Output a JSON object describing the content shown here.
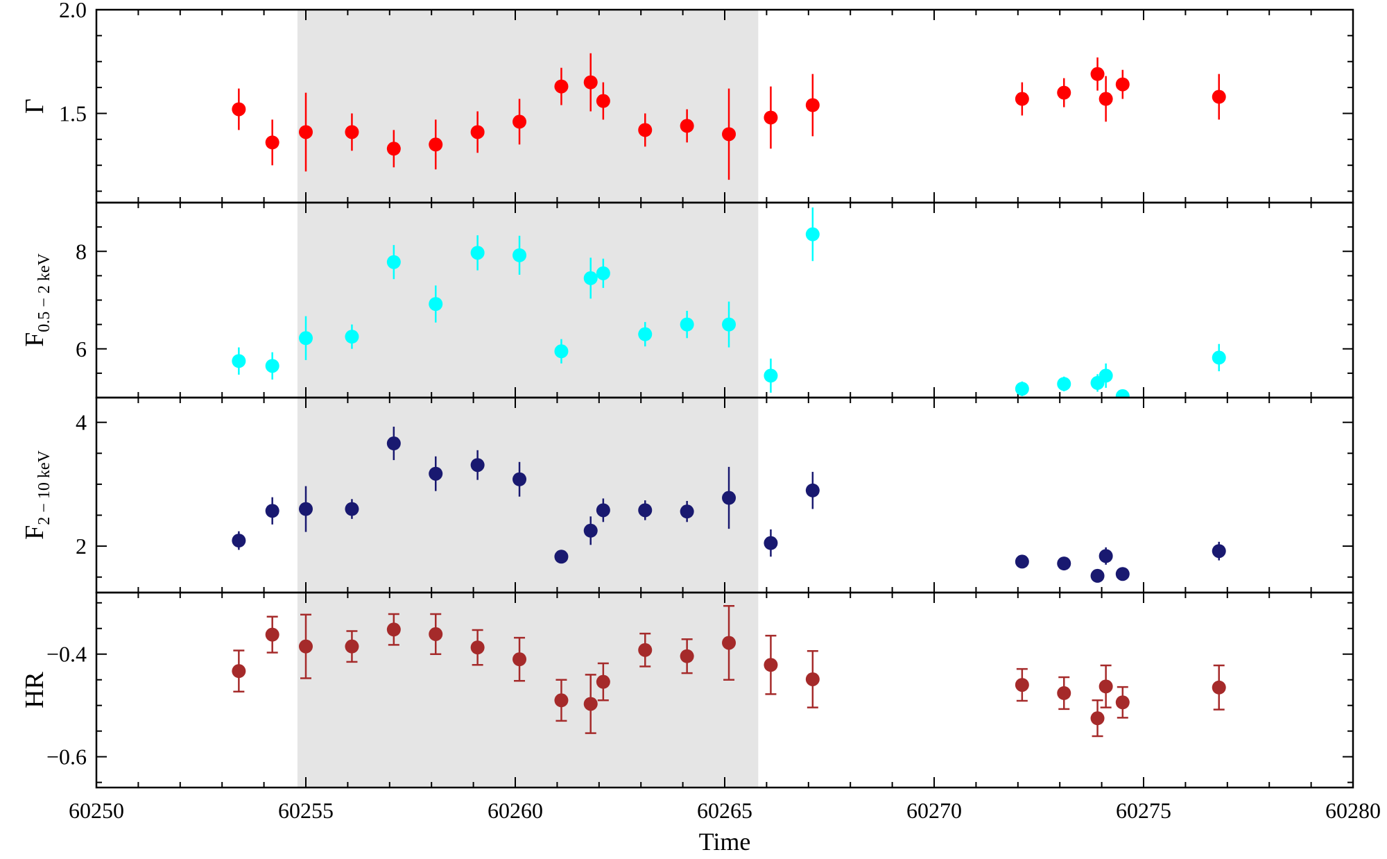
{
  "chart_data": {
    "type": "scatter",
    "xlabel": "Time",
    "xlim": [
      60250,
      60280
    ],
    "x_ticks": [
      "60250",
      "60255",
      "60260",
      "60265",
      "60270",
      "60275",
      "60280"
    ],
    "shaded_interval": [
      60254.8,
      60265.8
    ],
    "panels": [
      {
        "id": "gamma",
        "ylabel": "Γ",
        "ylabel_sub": "",
        "ylim": [
          1.07,
          2.0
        ],
        "y_ticks": [
          1.5,
          2.0
        ],
        "y_tick_labels": [
          "1.5",
          "2.0"
        ],
        "color": "#ff0000",
        "marker_style": "errorbar",
        "points": [
          {
            "x": 60253.4,
            "y": 1.52,
            "err": 0.1
          },
          {
            "x": 60254.2,
            "y": 1.36,
            "err": 0.11
          },
          {
            "x": 60255.0,
            "y": 1.41,
            "err": 0.19
          },
          {
            "x": 60256.1,
            "y": 1.41,
            "err": 0.09
          },
          {
            "x": 60257.1,
            "y": 1.33,
            "err": 0.09
          },
          {
            "x": 60258.1,
            "y": 1.35,
            "err": 0.12
          },
          {
            "x": 60259.1,
            "y": 1.41,
            "err": 0.1
          },
          {
            "x": 60260.1,
            "y": 1.46,
            "err": 0.11
          },
          {
            "x": 60261.1,
            "y": 1.63,
            "err": 0.09
          },
          {
            "x": 60261.8,
            "y": 1.65,
            "err": 0.14
          },
          {
            "x": 60262.1,
            "y": 1.56,
            "err": 0.09
          },
          {
            "x": 60263.1,
            "y": 1.42,
            "err": 0.08
          },
          {
            "x": 60264.1,
            "y": 1.44,
            "err": 0.08
          },
          {
            "x": 60265.1,
            "y": 1.4,
            "err": 0.22
          },
          {
            "x": 60266.1,
            "y": 1.48,
            "err": 0.15
          },
          {
            "x": 60267.1,
            "y": 1.54,
            "err": 0.15
          },
          {
            "x": 60272.1,
            "y": 1.57,
            "err": 0.08
          },
          {
            "x": 60273.1,
            "y": 1.6,
            "err": 0.07
          },
          {
            "x": 60273.9,
            "y": 1.69,
            "err": 0.08
          },
          {
            "x": 60274.1,
            "y": 1.57,
            "err": 0.11
          },
          {
            "x": 60274.5,
            "y": 1.64,
            "err": 0.07
          },
          {
            "x": 60276.8,
            "y": 1.58,
            "err": 0.11
          }
        ]
      },
      {
        "id": "flux_soft",
        "ylabel": "F",
        "ylabel_sub": "0.5 − 2 keV",
        "ylim": [
          5.0,
          9.0
        ],
        "y_ticks": [
          6,
          8
        ],
        "y_tick_labels": [
          "6",
          "8"
        ],
        "color": "#00ffff",
        "marker_style": "errorbar",
        "points": [
          {
            "x": 60253.4,
            "y": 5.75,
            "err": 0.28
          },
          {
            "x": 60254.2,
            "y": 5.65,
            "err": 0.28
          },
          {
            "x": 60255.0,
            "y": 6.22,
            "err": 0.45
          },
          {
            "x": 60256.1,
            "y": 6.25,
            "err": 0.25
          },
          {
            "x": 60257.1,
            "y": 7.78,
            "err": 0.35
          },
          {
            "x": 60258.1,
            "y": 6.92,
            "err": 0.38
          },
          {
            "x": 60259.1,
            "y": 7.97,
            "err": 0.36
          },
          {
            "x": 60260.1,
            "y": 7.92,
            "err": 0.4
          },
          {
            "x": 60261.1,
            "y": 5.95,
            "err": 0.25
          },
          {
            "x": 60261.8,
            "y": 7.45,
            "err": 0.42
          },
          {
            "x": 60262.1,
            "y": 7.55,
            "err": 0.3
          },
          {
            "x": 60263.1,
            "y": 6.3,
            "err": 0.25
          },
          {
            "x": 60264.1,
            "y": 6.5,
            "err": 0.28
          },
          {
            "x": 60265.1,
            "y": 6.5,
            "err": 0.47
          },
          {
            "x": 60266.1,
            "y": 5.45,
            "err": 0.35
          },
          {
            "x": 60267.1,
            "y": 8.35,
            "err": 0.55
          },
          {
            "x": 60272.1,
            "y": 5.18,
            "err": 0.15
          },
          {
            "x": 60273.1,
            "y": 5.28,
            "err": 0.15
          },
          {
            "x": 60273.9,
            "y": 5.3,
            "err": 0.18
          },
          {
            "x": 60274.1,
            "y": 5.45,
            "err": 0.25
          },
          {
            "x": 60274.5,
            "y": 5.03,
            "err": 0.05
          },
          {
            "x": 60276.8,
            "y": 5.82,
            "err": 0.28
          }
        ]
      },
      {
        "id": "flux_hard",
        "ylabel": "F",
        "ylabel_sub": "2 − 10 keV",
        "ylim": [
          1.25,
          4.4
        ],
        "y_ticks": [
          2,
          4
        ],
        "y_tick_labels": [
          "2",
          "4"
        ],
        "color": "#191970",
        "marker_style": "errorbar",
        "points": [
          {
            "x": 60253.4,
            "y": 2.09,
            "err": 0.15
          },
          {
            "x": 60254.2,
            "y": 2.57,
            "err": 0.22
          },
          {
            "x": 60255.0,
            "y": 2.6,
            "err": 0.37
          },
          {
            "x": 60256.1,
            "y": 2.6,
            "err": 0.16
          },
          {
            "x": 60257.1,
            "y": 3.66,
            "err": 0.27
          },
          {
            "x": 60258.1,
            "y": 3.17,
            "err": 0.28
          },
          {
            "x": 60259.1,
            "y": 3.31,
            "err": 0.24
          },
          {
            "x": 60260.1,
            "y": 3.08,
            "err": 0.28
          },
          {
            "x": 60261.1,
            "y": 1.83,
            "err": 0.1
          },
          {
            "x": 60261.8,
            "y": 2.25,
            "err": 0.23
          },
          {
            "x": 60262.1,
            "y": 2.58,
            "err": 0.19
          },
          {
            "x": 60263.1,
            "y": 2.58,
            "err": 0.16
          },
          {
            "x": 60264.1,
            "y": 2.56,
            "err": 0.17
          },
          {
            "x": 60265.1,
            "y": 2.78,
            "err": 0.5
          },
          {
            "x": 60266.1,
            "y": 2.05,
            "err": 0.22
          },
          {
            "x": 60267.1,
            "y": 2.9,
            "err": 0.3
          },
          {
            "x": 60272.1,
            "y": 1.75,
            "err": 0.06
          },
          {
            "x": 60273.1,
            "y": 1.72,
            "err": 0.06
          },
          {
            "x": 60273.9,
            "y": 1.52,
            "err": 0.06
          },
          {
            "x": 60274.1,
            "y": 1.84,
            "err": 0.14
          },
          {
            "x": 60274.5,
            "y": 1.55,
            "err": 0.06
          },
          {
            "x": 60276.8,
            "y": 1.92,
            "err": 0.15
          }
        ]
      },
      {
        "id": "hr",
        "ylabel": "HR",
        "ylabel_sub": "",
        "ylim": [
          -0.66,
          -0.28
        ],
        "y_ticks": [
          -0.6,
          -0.4
        ],
        "y_tick_labels": [
          "−0.6",
          "−0.4"
        ],
        "color": "#a52a2a",
        "marker_style": "errorbar-capped",
        "points": [
          {
            "x": 60253.4,
            "y": -0.433,
            "err": 0.04
          },
          {
            "x": 60254.2,
            "y": -0.362,
            "err": 0.035
          },
          {
            "x": 60255.0,
            "y": -0.385,
            "err": 0.062
          },
          {
            "x": 60256.1,
            "y": -0.385,
            "err": 0.03
          },
          {
            "x": 60257.1,
            "y": -0.352,
            "err": 0.03
          },
          {
            "x": 60258.1,
            "y": -0.361,
            "err": 0.039
          },
          {
            "x": 60259.1,
            "y": -0.387,
            "err": 0.034
          },
          {
            "x": 60260.1,
            "y": -0.41,
            "err": 0.042
          },
          {
            "x": 60261.1,
            "y": -0.49,
            "err": 0.04
          },
          {
            "x": 60261.8,
            "y": -0.497,
            "err": 0.057
          },
          {
            "x": 60262.1,
            "y": -0.454,
            "err": 0.036
          },
          {
            "x": 60263.1,
            "y": -0.392,
            "err": 0.032
          },
          {
            "x": 60264.1,
            "y": -0.404,
            "err": 0.033
          },
          {
            "x": 60265.1,
            "y": -0.378,
            "err": 0.072
          },
          {
            "x": 60266.1,
            "y": -0.421,
            "err": 0.057
          },
          {
            "x": 60267.1,
            "y": -0.449,
            "err": 0.055
          },
          {
            "x": 60272.1,
            "y": -0.46,
            "err": 0.031
          },
          {
            "x": 60273.1,
            "y": -0.476,
            "err": 0.031
          },
          {
            "x": 60273.9,
            "y": -0.525,
            "err": 0.035
          },
          {
            "x": 60274.1,
            "y": -0.463,
            "err": 0.041
          },
          {
            "x": 60274.5,
            "y": -0.494,
            "err": 0.03
          },
          {
            "x": 60276.8,
            "y": -0.465,
            "err": 0.043
          }
        ]
      }
    ]
  }
}
